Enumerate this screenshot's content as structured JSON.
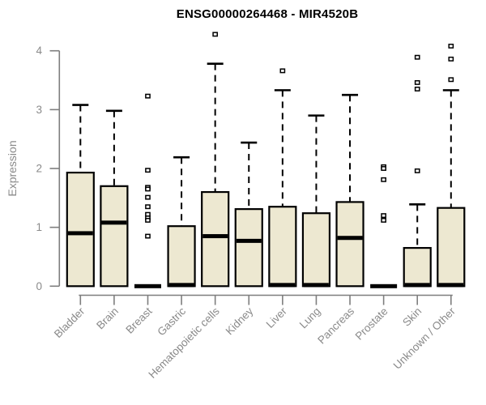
{
  "title": "ENSG00000264468 - MIR4520B",
  "colors": {
    "background": "#ffffff",
    "box_fill": "#EDE8D1",
    "box_border": "#000000",
    "median": "#000000",
    "whisker": "#000000",
    "outlier_fill": "#ffffff",
    "outlier_border": "#000000",
    "axis": "#7e7e7e",
    "tick_label": "#8a8a8a",
    "title_color": "#000000"
  },
  "chart_data": {
    "type": "boxplot",
    "title": "ENSG00000264468 - MIR4520B",
    "xlabel": "",
    "ylabel": "Expression",
    "ylim": [
      0,
      4
    ],
    "yticks": [
      0,
      1,
      2,
      3,
      4
    ],
    "grid": false,
    "legend": "none",
    "categories": [
      "Bladder",
      "Brain",
      "Breast",
      "Gastric",
      "Hematopoietic cells",
      "Kidney",
      "Liver",
      "Lung",
      "Pancreas",
      "Prostate",
      "Skin",
      "Unknown / Other"
    ],
    "series": [
      {
        "category": "Bladder",
        "whisker_low": 0,
        "q1": 0,
        "median": 0.9,
        "q3": 1.93,
        "whisker_high": 3.08,
        "outliers": []
      },
      {
        "category": "Brain",
        "whisker_low": 0,
        "q1": 0,
        "median": 1.08,
        "q3": 1.7,
        "whisker_high": 2.98,
        "outliers": []
      },
      {
        "category": "Breast",
        "whisker_low": 0,
        "q1": 0,
        "median": 0.0,
        "q3": 0.0,
        "whisker_high": 0.0,
        "outliers": [
          3.23,
          1.97,
          1.68,
          1.65,
          1.51,
          1.35,
          1.22,
          1.16,
          1.12,
          0.85
        ]
      },
      {
        "category": "Gastric",
        "whisker_low": 0,
        "q1": 0,
        "median": 0.02,
        "q3": 1.02,
        "whisker_high": 2.19,
        "outliers": []
      },
      {
        "category": "Hematopoietic cells",
        "whisker_low": 0,
        "q1": 0,
        "median": 0.85,
        "q3": 1.6,
        "whisker_high": 3.78,
        "outliers": [
          4.28
        ]
      },
      {
        "category": "Kidney",
        "whisker_low": 0,
        "q1": 0,
        "median": 0.77,
        "q3": 1.31,
        "whisker_high": 2.44,
        "outliers": []
      },
      {
        "category": "Liver",
        "whisker_low": 0,
        "q1": 0,
        "median": 0.02,
        "q3": 1.35,
        "whisker_high": 3.33,
        "outliers": [
          3.66
        ]
      },
      {
        "category": "Lung",
        "whisker_low": 0,
        "q1": 0,
        "median": 0.02,
        "q3": 1.24,
        "whisker_high": 2.9,
        "outliers": []
      },
      {
        "category": "Pancreas",
        "whisker_low": 0,
        "q1": 0,
        "median": 0.82,
        "q3": 1.43,
        "whisker_high": 3.25,
        "outliers": []
      },
      {
        "category": "Prostate",
        "whisker_low": 0,
        "q1": 0,
        "median": 0.0,
        "q3": 0.0,
        "whisker_high": 0.0,
        "outliers": [
          2.03,
          2.0,
          1.81,
          1.2,
          1.12
        ]
      },
      {
        "category": "Skin",
        "whisker_low": 0,
        "q1": 0,
        "median": 0.02,
        "q3": 0.65,
        "whisker_high": 1.39,
        "outliers": [
          3.89,
          3.46,
          3.35,
          1.96
        ]
      },
      {
        "category": "Unknown / Other",
        "whisker_low": 0,
        "q1": 0,
        "median": 0.02,
        "q3": 1.33,
        "whisker_high": 3.33,
        "outliers": [
          4.08,
          3.86,
          3.51
        ]
      }
    ]
  }
}
